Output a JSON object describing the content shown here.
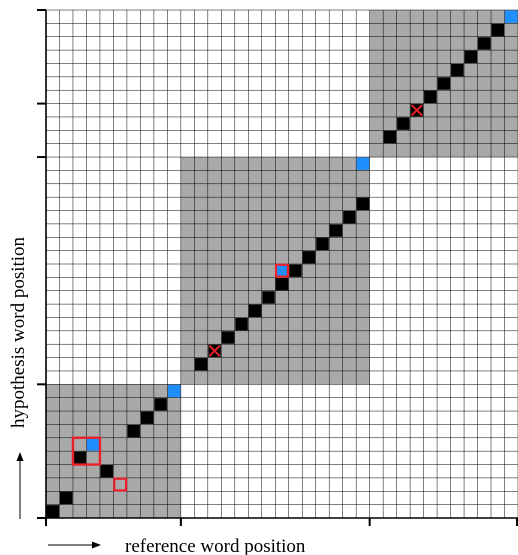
{
  "x_label": "reference word position",
  "y_label": "hypothesis word position",
  "colors": {
    "background": "#ffffff",
    "grid_line": "#000000",
    "block_shade": "#a9a9a9",
    "path_cell": "#000000",
    "boundary_cell": "#1f8fff",
    "error_marker": "#e8202a"
  },
  "grid": {
    "columns": 35,
    "rows": 38
  },
  "x_axis_ticks": [
    10,
    24
  ],
  "y_axis_ticks": [
    10,
    27,
    31
  ],
  "shaded_blocks": [
    {
      "col_start": 0,
      "col_end": 9,
      "row_start": 0,
      "row_end": 9
    },
    {
      "col_start": 10,
      "col_end": 23,
      "row_start": 10,
      "row_end": 26
    },
    {
      "col_start": 24,
      "col_end": 34,
      "row_start": 27,
      "row_end": 37
    }
  ],
  "path_cells": [
    [
      0,
      0
    ],
    [
      1,
      1
    ],
    [
      2,
      4
    ],
    [
      4,
      3
    ],
    [
      6,
      6
    ],
    [
      7,
      7
    ],
    [
      8,
      8
    ],
    [
      11,
      11
    ],
    [
      12,
      12
    ],
    [
      13,
      13
    ],
    [
      14,
      14
    ],
    [
      15,
      15
    ],
    [
      16,
      16
    ],
    [
      17,
      17
    ],
    [
      18,
      18
    ],
    [
      19,
      19
    ],
    [
      20,
      20
    ],
    [
      21,
      21
    ],
    [
      22,
      22
    ],
    [
      23,
      23
    ],
    [
      25,
      28
    ],
    [
      26,
      29
    ],
    [
      27,
      30
    ],
    [
      28,
      31
    ],
    [
      29,
      32
    ],
    [
      30,
      33
    ],
    [
      31,
      34
    ],
    [
      32,
      35
    ],
    [
      33,
      36
    ]
  ],
  "boundary_cells": [
    [
      9,
      9
    ],
    [
      23,
      26
    ],
    [
      34,
      37
    ],
    [
      3,
      5
    ],
    [
      17,
      18
    ]
  ],
  "error_squares": [
    [
      5,
      2
    ],
    [
      17,
      18
    ]
  ],
  "error_box_2x2": [
    [
      2,
      4
    ]
  ],
  "error_crosses": [
    [
      12,
      12
    ],
    [
      27,
      30
    ]
  ]
}
